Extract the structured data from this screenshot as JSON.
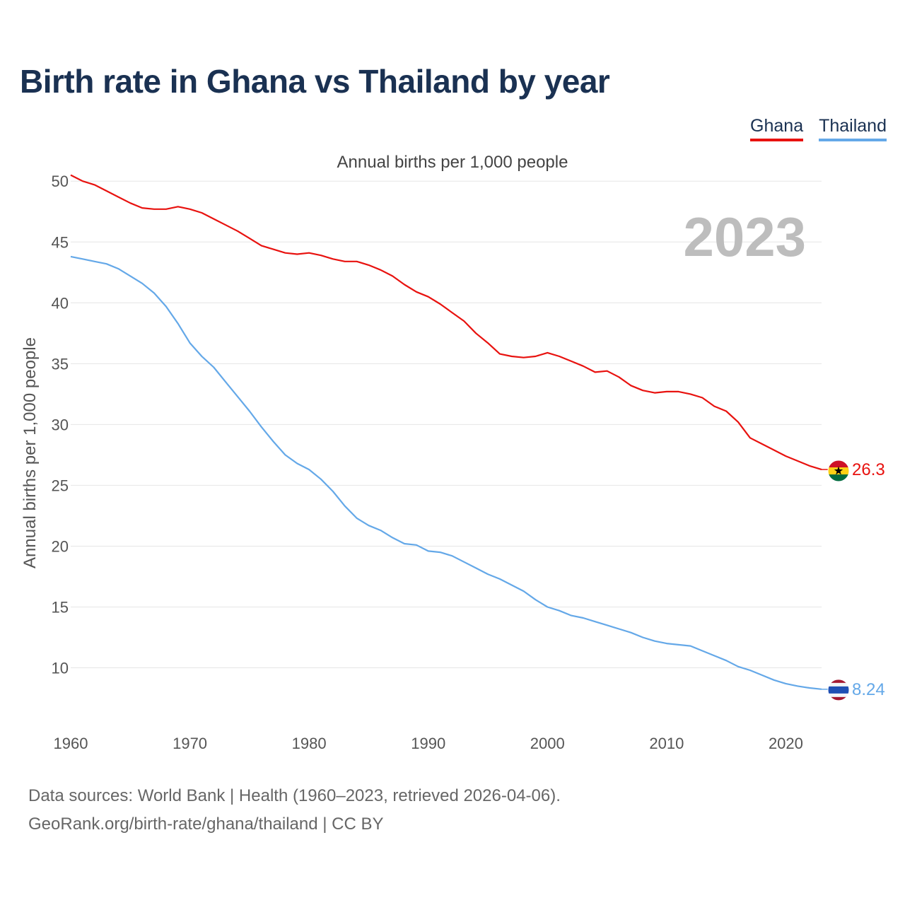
{
  "title": "Birth rate in Ghana vs Thailand by year",
  "subtitle": "Annual births per 1,000 people",
  "current_year": "2023",
  "footer": {
    "line1": "Data sources: World Bank | Health (1960–2023, retrieved 2026-04-06).",
    "line2": "GeoRank.org/birth-rate/ghana/thailand | CC BY"
  },
  "chart_data": {
    "type": "line",
    "title": "Birth rate in Ghana vs Thailand by year",
    "xlabel": "",
    "ylabel": "Annual births per 1,000 people",
    "xlim": [
      1960,
      2023
    ],
    "ylim": [
      5.5,
      51
    ],
    "x_ticks": [
      1960,
      1970,
      1980,
      1990,
      2000,
      2010,
      2020
    ],
    "y_ticks": [
      10,
      15,
      20,
      25,
      30,
      35,
      40,
      45,
      50
    ],
    "grid": true,
    "legend_position": "top-right",
    "x": [
      1960,
      1961,
      1962,
      1963,
      1964,
      1965,
      1966,
      1967,
      1968,
      1969,
      1970,
      1971,
      1972,
      1973,
      1974,
      1975,
      1976,
      1977,
      1978,
      1979,
      1980,
      1981,
      1982,
      1983,
      1984,
      1985,
      1986,
      1987,
      1988,
      1989,
      1990,
      1991,
      1992,
      1993,
      1994,
      1995,
      1996,
      1997,
      1998,
      1999,
      2000,
      2001,
      2002,
      2003,
      2004,
      2005,
      2006,
      2007,
      2008,
      2009,
      2010,
      2011,
      2012,
      2013,
      2014,
      2015,
      2016,
      2017,
      2018,
      2019,
      2020,
      2021,
      2022,
      2023
    ],
    "series": [
      {
        "name": "Ghana",
        "color": "#e8120f",
        "end_label": "26.3",
        "values": [
          50.5,
          50.0,
          49.7,
          49.2,
          48.7,
          48.2,
          47.8,
          47.7,
          47.7,
          47.9,
          47.7,
          47.4,
          46.9,
          46.4,
          45.9,
          45.3,
          44.7,
          44.4,
          44.1,
          44.0,
          44.1,
          43.9,
          43.6,
          43.4,
          43.4,
          43.1,
          42.7,
          42.2,
          41.5,
          40.9,
          40.5,
          39.9,
          39.2,
          38.5,
          37.5,
          36.7,
          35.8,
          35.6,
          35.5,
          35.6,
          35.9,
          35.6,
          35.2,
          34.8,
          34.3,
          34.4,
          33.9,
          33.2,
          32.8,
          32.6,
          32.7,
          32.7,
          32.5,
          32.2,
          31.5,
          31.1,
          30.2,
          28.9,
          28.4,
          27.9,
          27.4,
          27.0,
          26.6,
          26.3
        ]
      },
      {
        "name": "Thailand",
        "color": "#64a8e8",
        "end_label": "8.24",
        "values": [
          43.8,
          43.6,
          43.4,
          43.2,
          42.8,
          42.2,
          41.6,
          40.8,
          39.7,
          38.3,
          36.7,
          35.6,
          34.7,
          33.5,
          32.3,
          31.1,
          29.8,
          28.6,
          27.5,
          26.8,
          26.3,
          25.5,
          24.5,
          23.3,
          22.3,
          21.7,
          21.3,
          20.7,
          20.2,
          20.1,
          19.6,
          19.5,
          19.2,
          18.7,
          18.2,
          17.7,
          17.3,
          16.8,
          16.3,
          15.6,
          15.0,
          14.7,
          14.3,
          14.1,
          13.8,
          13.5,
          13.2,
          12.9,
          12.5,
          12.2,
          12.0,
          11.9,
          11.8,
          11.4,
          11.0,
          10.6,
          10.1,
          9.8,
          9.4,
          9.0,
          8.7,
          8.5,
          8.35,
          8.24
        ]
      }
    ]
  }
}
